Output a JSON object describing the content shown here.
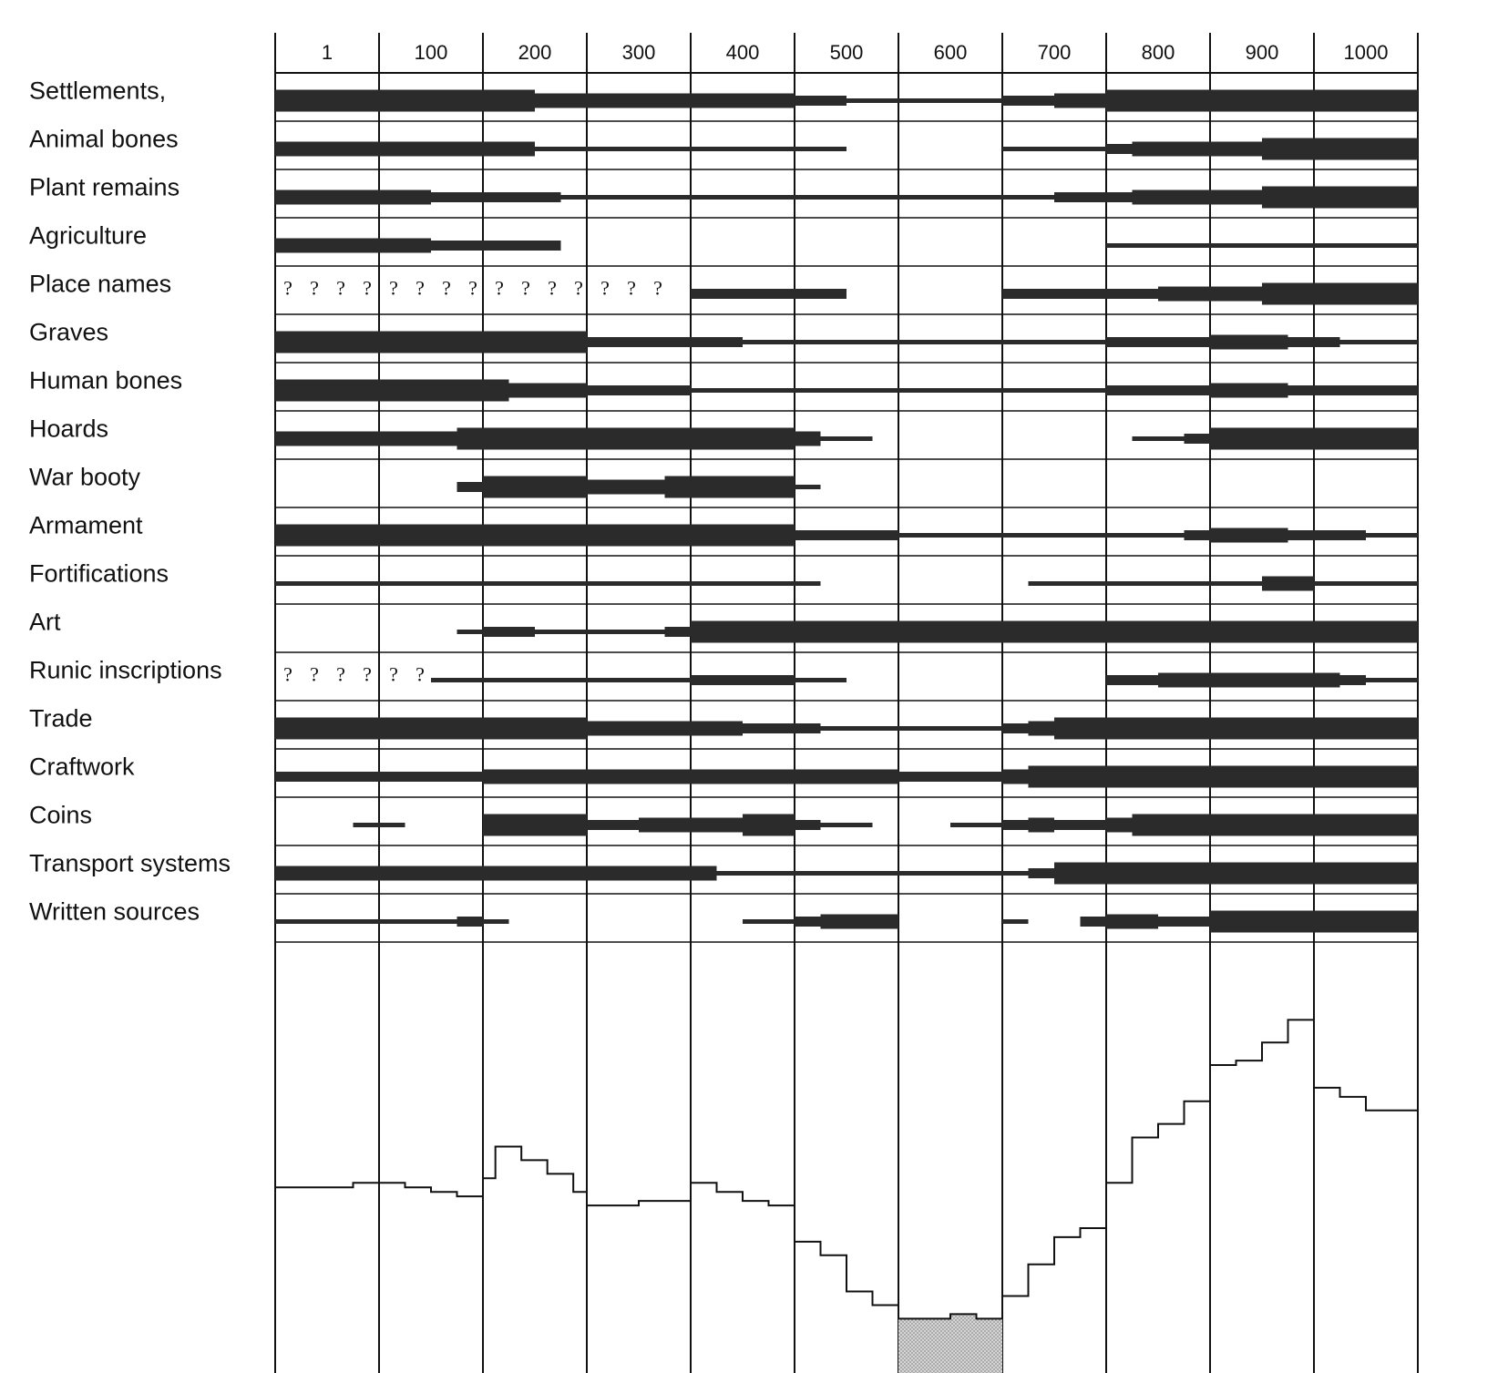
{
  "colors": {
    "ink": "#111111",
    "background": "#ffffff",
    "bar": "#2b2b2b",
    "gap_fill": "#c8c8c8"
  },
  "chart_data": {
    "type": "bar-range-timeline",
    "title": "",
    "x_unit": "year AD",
    "xlim": [
      0,
      1100
    ],
    "x_ticks": [
      "1",
      "100",
      "200",
      "300",
      "400",
      "500",
      "600",
      "700",
      "800",
      "900",
      "1000"
    ],
    "x_tick_values": [
      1,
      100,
      200,
      300,
      400,
      500,
      600,
      700,
      800,
      900,
      1000
    ],
    "thickness_unit": "relative abundance of evidence (1 = thin line, 4 = very thick)",
    "rows": [
      {
        "label": "Settlements,",
        "segments": [
          {
            "from": 0,
            "to": 250,
            "t": 4
          },
          {
            "from": 250,
            "to": 500,
            "t": 3
          },
          {
            "from": 500,
            "to": 550,
            "t": 2
          },
          {
            "from": 550,
            "to": 700,
            "t": 1
          },
          {
            "from": 700,
            "to": 750,
            "t": 2
          },
          {
            "from": 750,
            "to": 800,
            "t": 3
          },
          {
            "from": 800,
            "to": 1100,
            "t": 4
          }
        ]
      },
      {
        "label": "Animal bones",
        "segments": [
          {
            "from": 0,
            "to": 250,
            "t": 3
          },
          {
            "from": 250,
            "to": 550,
            "t": 1
          },
          {
            "from": 700,
            "to": 800,
            "t": 1
          },
          {
            "from": 800,
            "to": 825,
            "t": 2
          },
          {
            "from": 825,
            "to": 950,
            "t": 3
          },
          {
            "from": 950,
            "to": 1100,
            "t": 4
          }
        ]
      },
      {
        "label": "Plant remains",
        "segments": [
          {
            "from": 0,
            "to": 150,
            "t": 3
          },
          {
            "from": 150,
            "to": 275,
            "t": 2
          },
          {
            "from": 275,
            "to": 700,
            "t": 1
          },
          {
            "from": 700,
            "to": 750,
            "t": 1
          },
          {
            "from": 750,
            "to": 825,
            "t": 2
          },
          {
            "from": 825,
            "to": 950,
            "t": 3
          },
          {
            "from": 950,
            "to": 1100,
            "t": 4
          }
        ]
      },
      {
        "label": "Agriculture",
        "segments": [
          {
            "from": 0,
            "to": 150,
            "t": 3
          },
          {
            "from": 150,
            "to": 275,
            "t": 2
          },
          {
            "from": 800,
            "to": 1100,
            "t": 1
          }
        ]
      },
      {
        "label": "Place names",
        "uncertain_from": 0,
        "uncertain_to": 400,
        "question_marks": "?",
        "segments": [
          {
            "from": 400,
            "to": 550,
            "t": 2
          },
          {
            "from": 700,
            "to": 850,
            "t": 2
          },
          {
            "from": 850,
            "to": 950,
            "t": 3
          },
          {
            "from": 950,
            "to": 1100,
            "t": 4
          }
        ]
      },
      {
        "label": "Graves",
        "segments": [
          {
            "from": 0,
            "to": 300,
            "t": 4
          },
          {
            "from": 300,
            "to": 450,
            "t": 2
          },
          {
            "from": 450,
            "to": 800,
            "t": 1
          },
          {
            "from": 800,
            "to": 900,
            "t": 2
          },
          {
            "from": 900,
            "to": 975,
            "t": 3
          },
          {
            "from": 975,
            "to": 1025,
            "t": 2
          },
          {
            "from": 1025,
            "to": 1100,
            "t": 1
          }
        ]
      },
      {
        "label": "Human bones",
        "segments": [
          {
            "from": 0,
            "to": 225,
            "t": 4
          },
          {
            "from": 225,
            "to": 300,
            "t": 3
          },
          {
            "from": 300,
            "to": 400,
            "t": 2
          },
          {
            "from": 400,
            "to": 800,
            "t": 1
          },
          {
            "from": 800,
            "to": 900,
            "t": 2
          },
          {
            "from": 900,
            "to": 975,
            "t": 3
          },
          {
            "from": 975,
            "to": 1100,
            "t": 2
          }
        ]
      },
      {
        "label": "Hoards",
        "segments": [
          {
            "from": 0,
            "to": 175,
            "t": 3
          },
          {
            "from": 175,
            "to": 500,
            "t": 4
          },
          {
            "from": 500,
            "to": 525,
            "t": 3
          },
          {
            "from": 525,
            "to": 575,
            "t": 1
          },
          {
            "from": 825,
            "to": 875,
            "t": 1
          },
          {
            "from": 875,
            "to": 900,
            "t": 2
          },
          {
            "from": 900,
            "to": 1100,
            "t": 4
          }
        ]
      },
      {
        "label": "War booty",
        "segments": [
          {
            "from": 175,
            "to": 200,
            "t": 2
          },
          {
            "from": 200,
            "to": 300,
            "t": 4
          },
          {
            "from": 300,
            "to": 375,
            "t": 3
          },
          {
            "from": 375,
            "to": 500,
            "t": 4
          },
          {
            "from": 500,
            "to": 525,
            "t": 1
          }
        ]
      },
      {
        "label": "Armament",
        "segments": [
          {
            "from": 0,
            "to": 500,
            "t": 4
          },
          {
            "from": 500,
            "to": 600,
            "t": 2
          },
          {
            "from": 600,
            "to": 700,
            "t": 1
          },
          {
            "from": 700,
            "to": 875,
            "t": 1
          },
          {
            "from": 875,
            "to": 900,
            "t": 2
          },
          {
            "from": 900,
            "to": 975,
            "t": 3
          },
          {
            "from": 975,
            "to": 1050,
            "t": 2
          },
          {
            "from": 1050,
            "to": 1100,
            "t": 1
          }
        ]
      },
      {
        "label": "Fortifications",
        "segments": [
          {
            "from": 0,
            "to": 525,
            "t": 1
          },
          {
            "from": 725,
            "to": 950,
            "t": 1
          },
          {
            "from": 950,
            "to": 1000,
            "t": 3
          },
          {
            "from": 1000,
            "to": 1100,
            "t": 1
          }
        ]
      },
      {
        "label": "Art",
        "segments": [
          {
            "from": 175,
            "to": 200,
            "t": 1
          },
          {
            "from": 200,
            "to": 250,
            "t": 2
          },
          {
            "from": 250,
            "to": 375,
            "t": 1
          },
          {
            "from": 375,
            "to": 400,
            "t": 2
          },
          {
            "from": 400,
            "to": 1100,
            "t": 4
          }
        ]
      },
      {
        "label": "Runic inscriptions",
        "uncertain_from": 0,
        "uncertain_to": 150,
        "question_marks": "?",
        "segments": [
          {
            "from": 150,
            "to": 400,
            "t": 1
          },
          {
            "from": 400,
            "to": 500,
            "t": 2
          },
          {
            "from": 500,
            "to": 550,
            "t": 1
          },
          {
            "from": 800,
            "to": 850,
            "t": 2
          },
          {
            "from": 850,
            "to": 950,
            "t": 3
          },
          {
            "from": 950,
            "to": 1025,
            "t": 3
          },
          {
            "from": 1025,
            "to": 1050,
            "t": 2
          },
          {
            "from": 1050,
            "to": 1100,
            "t": 1
          }
        ]
      },
      {
        "label": "Trade",
        "segments": [
          {
            "from": 0,
            "to": 300,
            "t": 4
          },
          {
            "from": 300,
            "to": 450,
            "t": 3
          },
          {
            "from": 450,
            "to": 525,
            "t": 2
          },
          {
            "from": 525,
            "to": 700,
            "t": 1
          },
          {
            "from": 700,
            "to": 725,
            "t": 2
          },
          {
            "from": 725,
            "to": 750,
            "t": 3
          },
          {
            "from": 750,
            "to": 1100,
            "t": 4
          }
        ]
      },
      {
        "label": "Craftwork",
        "segments": [
          {
            "from": 0,
            "to": 200,
            "t": 2
          },
          {
            "from": 200,
            "to": 600,
            "t": 3
          },
          {
            "from": 600,
            "to": 700,
            "t": 2
          },
          {
            "from": 700,
            "to": 725,
            "t": 3
          },
          {
            "from": 725,
            "to": 1100,
            "t": 4
          }
        ]
      },
      {
        "label": "Coins",
        "segments": [
          {
            "from": 75,
            "to": 125,
            "t": 1
          },
          {
            "from": 200,
            "to": 300,
            "t": 4
          },
          {
            "from": 300,
            "to": 350,
            "t": 2
          },
          {
            "from": 350,
            "to": 450,
            "t": 3
          },
          {
            "from": 450,
            "to": 500,
            "t": 4
          },
          {
            "from": 500,
            "to": 525,
            "t": 2
          },
          {
            "from": 525,
            "to": 575,
            "t": 1
          },
          {
            "from": 650,
            "to": 700,
            "t": 1
          },
          {
            "from": 700,
            "to": 725,
            "t": 2
          },
          {
            "from": 725,
            "to": 750,
            "t": 3
          },
          {
            "from": 750,
            "to": 800,
            "t": 2
          },
          {
            "from": 800,
            "to": 825,
            "t": 3
          },
          {
            "from": 825,
            "to": 1100,
            "t": 4
          }
        ]
      },
      {
        "label": "Transport systems",
        "segments": [
          {
            "from": 0,
            "to": 425,
            "t": 3
          },
          {
            "from": 425,
            "to": 725,
            "t": 1
          },
          {
            "from": 725,
            "to": 750,
            "t": 2
          },
          {
            "from": 750,
            "to": 1100,
            "t": 4
          }
        ]
      },
      {
        "label": "Written sources",
        "segments": [
          {
            "from": 0,
            "to": 175,
            "t": 1
          },
          {
            "from": 175,
            "to": 200,
            "t": 2
          },
          {
            "from": 200,
            "to": 225,
            "t": 1
          },
          {
            "from": 450,
            "to": 500,
            "t": 1
          },
          {
            "from": 500,
            "to": 525,
            "t": 2
          },
          {
            "from": 525,
            "to": 600,
            "t": 3
          },
          {
            "from": 700,
            "to": 725,
            "t": 1
          },
          {
            "from": 775,
            "to": 800,
            "t": 2
          },
          {
            "from": 800,
            "to": 825,
            "t": 3
          },
          {
            "from": 825,
            "to": 850,
            "t": 3
          },
          {
            "from": 850,
            "to": 900,
            "t": 2
          },
          {
            "from": 900,
            "to": 1100,
            "t": 4
          }
        ]
      }
    ],
    "summary_curve": {
      "type": "step",
      "y_unit": "relative total evidence (0 = bottom of panel, 1 = top)",
      "points": [
        [
          0,
          0.41
        ],
        [
          75,
          0.41
        ],
        [
          75,
          0.42
        ],
        [
          125,
          0.42
        ],
        [
          125,
          0.41
        ],
        [
          150,
          0.41
        ],
        [
          150,
          0.4
        ],
        [
          175,
          0.4
        ],
        [
          175,
          0.39
        ],
        [
          200,
          0.39
        ],
        [
          200,
          0.43
        ],
        [
          212,
          0.43
        ],
        [
          212,
          0.5
        ],
        [
          237,
          0.5
        ],
        [
          237,
          0.47
        ],
        [
          262,
          0.47
        ],
        [
          262,
          0.44
        ],
        [
          287,
          0.44
        ],
        [
          287,
          0.4
        ],
        [
          300,
          0.4
        ],
        [
          300,
          0.37
        ],
        [
          350,
          0.37
        ],
        [
          350,
          0.38
        ],
        [
          400,
          0.38
        ],
        [
          400,
          0.42
        ],
        [
          425,
          0.42
        ],
        [
          425,
          0.4
        ],
        [
          450,
          0.4
        ],
        [
          450,
          0.38
        ],
        [
          475,
          0.38
        ],
        [
          475,
          0.37
        ],
        [
          500,
          0.37
        ],
        [
          500,
          0.29
        ],
        [
          525,
          0.29
        ],
        [
          525,
          0.26
        ],
        [
          550,
          0.26
        ],
        [
          550,
          0.18
        ],
        [
          575,
          0.18
        ],
        [
          575,
          0.15
        ],
        [
          600,
          0.15
        ],
        [
          600,
          0.12
        ],
        [
          650,
          0.12
        ],
        [
          650,
          0.13
        ],
        [
          675,
          0.13
        ],
        [
          675,
          0.12
        ],
        [
          700,
          0.12
        ],
        [
          700,
          0.17
        ],
        [
          725,
          0.17
        ],
        [
          725,
          0.24
        ],
        [
          750,
          0.24
        ],
        [
          750,
          0.3
        ],
        [
          775,
          0.3
        ],
        [
          775,
          0.32
        ],
        [
          800,
          0.32
        ],
        [
          800,
          0.42
        ],
        [
          825,
          0.42
        ],
        [
          825,
          0.52
        ],
        [
          850,
          0.52
        ],
        [
          850,
          0.55
        ],
        [
          875,
          0.55
        ],
        [
          875,
          0.6
        ],
        [
          900,
          0.6
        ],
        [
          900,
          0.68
        ],
        [
          925,
          0.68
        ],
        [
          925,
          0.69
        ],
        [
          950,
          0.69
        ],
        [
          950,
          0.73
        ],
        [
          975,
          0.73
        ],
        [
          975,
          0.78
        ],
        [
          1000,
          0.78
        ],
        [
          1000,
          0.63
        ],
        [
          1025,
          0.63
        ],
        [
          1025,
          0.61
        ],
        [
          1050,
          0.61
        ],
        [
          1050,
          0.58
        ],
        [
          1100,
          0.58
        ]
      ],
      "shaded_range": [
        600,
        700
      ]
    }
  }
}
